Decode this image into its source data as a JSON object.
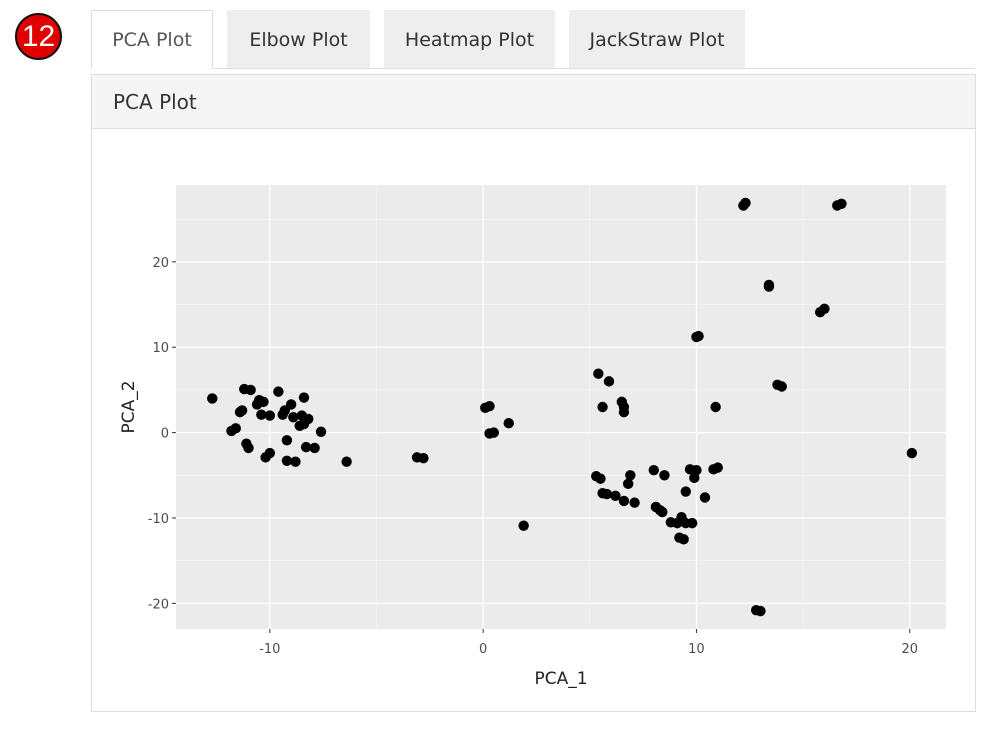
{
  "badge": "12",
  "tabs": [
    {
      "label": "PCA Plot",
      "active": true
    },
    {
      "label": "Elbow Plot",
      "active": false
    },
    {
      "label": "Heatmap Plot",
      "active": false
    },
    {
      "label": "JackStraw Plot",
      "active": false
    }
  ],
  "panel": {
    "title": "PCA Plot"
  },
  "colors": {
    "plot_bg": "#ebebeb",
    "grid": "#ffffff",
    "point": "#000000"
  },
  "chart_data": {
    "type": "scatter",
    "title": "",
    "xlabel": "PCA_1",
    "ylabel": "PCA_2",
    "xlim": [
      -14.4,
      21.7
    ],
    "ylim": [
      -23,
      29
    ],
    "xticks": [
      -10,
      0,
      10,
      20
    ],
    "yticks": [
      -20,
      -10,
      0,
      10,
      20
    ],
    "grid": true,
    "legend": "none",
    "points": [
      [
        -12.7,
        4.0
      ],
      [
        -11.8,
        0.2
      ],
      [
        -11.6,
        0.5
      ],
      [
        -11.4,
        2.4
      ],
      [
        -11.3,
        2.6
      ],
      [
        -11.2,
        5.1
      ],
      [
        -11.1,
        -1.3
      ],
      [
        -11.0,
        -1.8
      ],
      [
        -10.9,
        5.0
      ],
      [
        -10.6,
        3.3
      ],
      [
        -10.5,
        3.8
      ],
      [
        -10.4,
        2.1
      ],
      [
        -10.3,
        3.6
      ],
      [
        -10.2,
        -2.9
      ],
      [
        -10.0,
        -2.4
      ],
      [
        -10.0,
        2.0
      ],
      [
        -9.6,
        4.8
      ],
      [
        -9.4,
        2.1
      ],
      [
        -9.3,
        2.6
      ],
      [
        -9.2,
        -0.9
      ],
      [
        -9.2,
        -3.3
      ],
      [
        -9.0,
        3.3
      ],
      [
        -8.9,
        1.8
      ],
      [
        -8.8,
        -3.4
      ],
      [
        -8.6,
        0.8
      ],
      [
        -8.5,
        2.0
      ],
      [
        -8.4,
        4.1
      ],
      [
        -8.4,
        1.0
      ],
      [
        -8.3,
        -1.7
      ],
      [
        -8.2,
        1.6
      ],
      [
        -7.9,
        -1.8
      ],
      [
        -7.6,
        0.1
      ],
      [
        -6.4,
        -3.4
      ],
      [
        -3.1,
        -2.9
      ],
      [
        -2.8,
        -3.0
      ],
      [
        0.1,
        2.9
      ],
      [
        0.3,
        3.1
      ],
      [
        0.3,
        -0.1
      ],
      [
        0.5,
        0.0
      ],
      [
        1.2,
        1.1
      ],
      [
        1.9,
        -10.9
      ],
      [
        5.3,
        -5.1
      ],
      [
        5.4,
        6.9
      ],
      [
        5.5,
        -5.4
      ],
      [
        5.6,
        -7.1
      ],
      [
        5.6,
        3.0
      ],
      [
        5.8,
        -7.2
      ],
      [
        5.9,
        6.0
      ],
      [
        6.2,
        -7.4
      ],
      [
        6.5,
        3.6
      ],
      [
        6.6,
        3.0
      ],
      [
        6.6,
        2.4
      ],
      [
        6.6,
        -8.0
      ],
      [
        6.8,
        -6.0
      ],
      [
        6.9,
        -5.0
      ],
      [
        7.1,
        -8.2
      ],
      [
        8.0,
        -4.4
      ],
      [
        8.1,
        -8.7
      ],
      [
        8.3,
        -9.1
      ],
      [
        8.4,
        -9.3
      ],
      [
        8.5,
        -5.0
      ],
      [
        8.8,
        -10.5
      ],
      [
        9.1,
        -10.6
      ],
      [
        9.2,
        -12.3
      ],
      [
        9.3,
        -9.9
      ],
      [
        9.4,
        -12.5
      ],
      [
        9.5,
        -6.9
      ],
      [
        9.5,
        -10.6
      ],
      [
        9.7,
        -4.3
      ],
      [
        9.8,
        -10.6
      ],
      [
        9.9,
        -5.3
      ],
      [
        10.0,
        -4.4
      ],
      [
        10.0,
        11.2
      ],
      [
        10.1,
        11.3
      ],
      [
        10.4,
        -7.6
      ],
      [
        10.8,
        -4.3
      ],
      [
        11.0,
        -4.1
      ],
      [
        10.9,
        3.0
      ],
      [
        12.2,
        26.6
      ],
      [
        12.3,
        26.9
      ],
      [
        12.8,
        -20.8
      ],
      [
        13.0,
        -20.9
      ],
      [
        13.4,
        17.1
      ],
      [
        13.4,
        17.3
      ],
      [
        13.8,
        5.6
      ],
      [
        14.0,
        5.4
      ],
      [
        15.8,
        14.1
      ],
      [
        16.0,
        14.5
      ],
      [
        16.6,
        26.6
      ],
      [
        16.8,
        26.8
      ],
      [
        20.1,
        -2.4
      ]
    ]
  }
}
